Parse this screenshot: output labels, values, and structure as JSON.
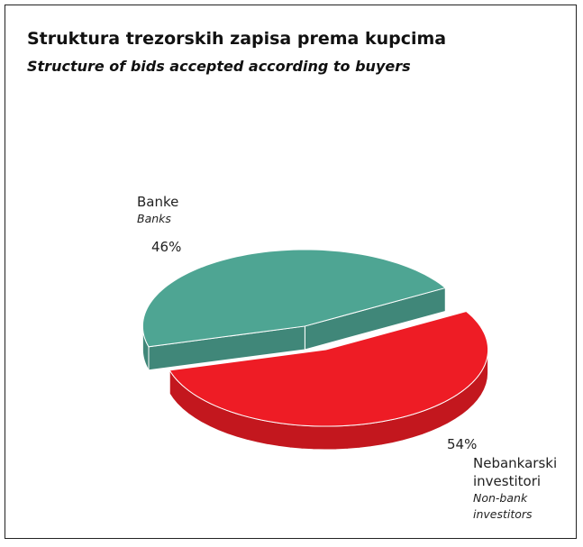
{
  "chart_data": {
    "type": "pie",
    "title": "Struktura trezorskih zapisa prema kupcima",
    "subtitle": "Structure of bids accepted according to buyers",
    "categories": [
      "Banke",
      "Nebankarski investitori"
    ],
    "categories_en": [
      "Banks",
      "Non-bank investitors"
    ],
    "values": [
      46,
      54
    ],
    "value_labels": [
      "46%",
      "54%"
    ],
    "colors": [
      "#4ea593",
      "#ee1c25"
    ]
  }
}
